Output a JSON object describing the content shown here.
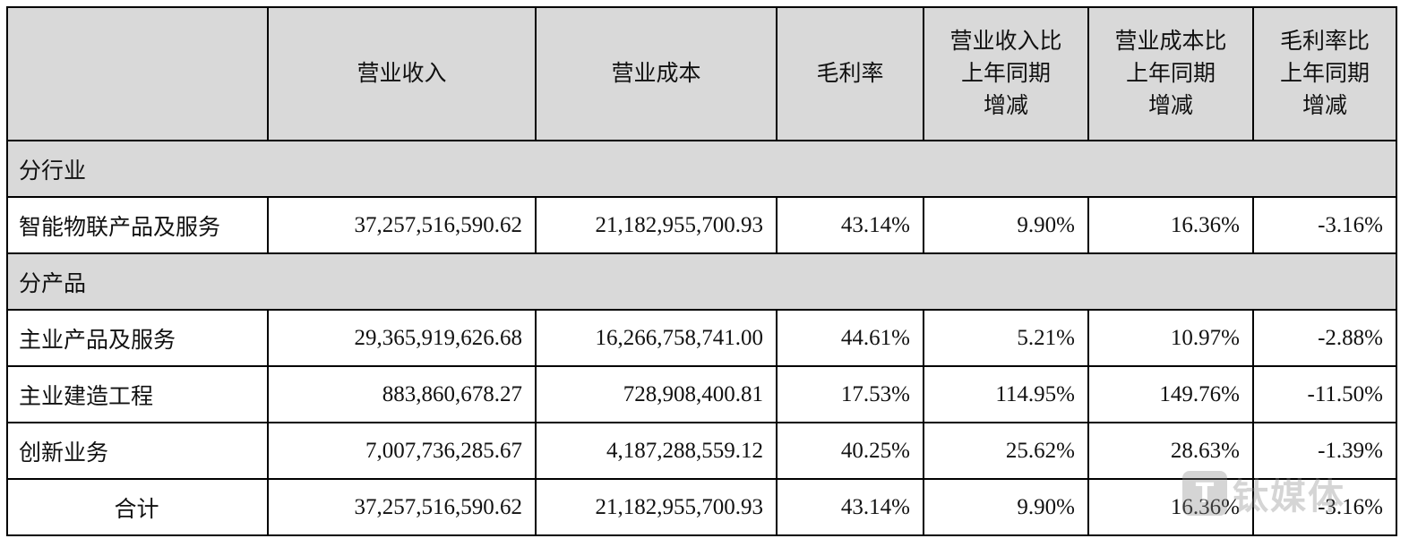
{
  "headers": [
    "",
    "营业收入",
    "营业成本",
    "毛利率",
    "营业收入比上年同期增减",
    "营业成本比上年同期增减",
    "毛利率比上年同期增减"
  ],
  "header_lines": [
    [
      ""
    ],
    [
      "营业收入"
    ],
    [
      "营业成本"
    ],
    [
      "毛利率"
    ],
    [
      "营业收入比",
      "上年同期",
      "增减"
    ],
    [
      "营业成本比",
      "上年同期",
      "增减"
    ],
    [
      "毛利率比",
      "上年同期",
      "增减"
    ]
  ],
  "sections": [
    {
      "title": "分行业",
      "rows": [
        [
          "智能物联产品及服务",
          "37,257,516,590.62",
          "21,182,955,700.93",
          "43.14%",
          "9.90%",
          "16.36%",
          "-3.16%"
        ]
      ]
    },
    {
      "title": "分产品",
      "rows": [
        [
          "主业产品及服务",
          "29,365,919,626.68",
          "16,266,758,741.00",
          "44.61%",
          "5.21%",
          "10.97%",
          "-2.88%"
        ],
        [
          "主业建造工程",
          "883,860,678.27",
          "728,908,400.81",
          "17.53%",
          "114.95%",
          "149.76%",
          "-11.50%"
        ],
        [
          "创新业务",
          "7,007,736,285.67",
          "4,187,288,559.12",
          "40.25%",
          "25.62%",
          "28.63%",
          "-1.39%"
        ]
      ]
    }
  ],
  "total": [
    "合计",
    "37,257,516,590.62",
    "21,182,955,700.93",
    "43.14%",
    "9.90%",
    "16.36%",
    "-3.16%"
  ],
  "watermark": "钛媒体",
  "colors": {
    "header_bg": "#d9d9d9",
    "border": "#000000"
  }
}
